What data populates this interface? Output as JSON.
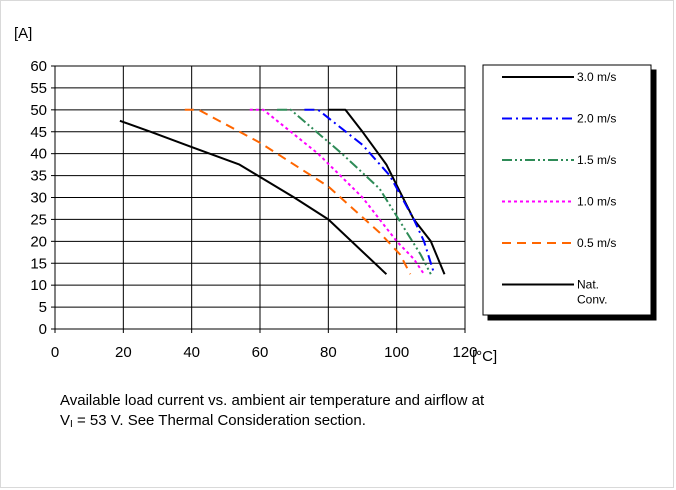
{
  "chart_data": {
    "type": "line",
    "ylabel": "[A]",
    "xlabel": "[°C]",
    "xlim": [
      0,
      120
    ],
    "ylim": [
      0,
      60
    ],
    "xticks": [
      0,
      20,
      40,
      60,
      80,
      100,
      120
    ],
    "yticks": [
      0,
      5,
      10,
      15,
      20,
      25,
      30,
      35,
      40,
      45,
      50,
      55,
      60
    ],
    "grid": true,
    "legend": "right",
    "series": [
      {
        "name": "3.0 m/s",
        "color": "#000000",
        "dash": "solid",
        "x": [
          80,
          85,
          90,
          97,
          105,
          110,
          114
        ],
        "y": [
          50,
          50,
          45,
          37.5,
          25,
          20,
          12.5
        ]
      },
      {
        "name": "2.0 m/s",
        "color": "#0000ff",
        "dash": "dashdot",
        "x": [
          73,
          77,
          90,
          98,
          105,
          108,
          111
        ],
        "y": [
          50,
          50,
          42,
          35,
          25,
          20,
          12.5
        ]
      },
      {
        "name": "1.5 m/s",
        "color": "#2e8b57",
        "dash": "dashdotdot",
        "x": [
          65,
          69,
          84,
          95,
          103,
          107,
          110
        ],
        "y": [
          50,
          50,
          40,
          32,
          22,
          17,
          12.5
        ]
      },
      {
        "name": "1.0 m/s",
        "color": "#ff00ff",
        "dash": "dot",
        "x": [
          57,
          61,
          77,
          90,
          100,
          105,
          108
        ],
        "y": [
          50,
          50,
          40,
          30,
          20,
          16,
          12.5
        ]
      },
      {
        "name": "0.5 m/s",
        "color": "#ff6600",
        "dash": "dash",
        "x": [
          38,
          42,
          60,
          80,
          95,
          101,
          104
        ],
        "y": [
          50,
          50,
          42.5,
          32.5,
          22,
          17,
          12.5
        ]
      },
      {
        "name": "Nat. Conv.",
        "color": "#000000",
        "dash": "solid",
        "x": [
          19,
          28,
          40,
          54,
          70,
          80,
          97
        ],
        "y": [
          47.5,
          45,
          41.5,
          37.5,
          30,
          25,
          12.5
        ]
      }
    ]
  },
  "caption": {
    "line1": "Available load current vs. ambient air temperature and airflow at",
    "v_prefix": "V",
    "v_sub": "I",
    "line2_rest": " = 53 V. See Thermal Consideration section."
  }
}
